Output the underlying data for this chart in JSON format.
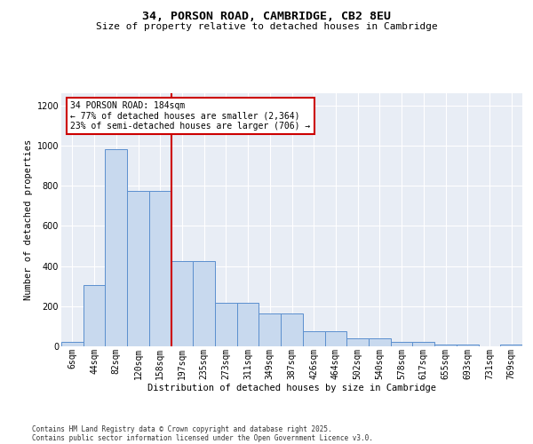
{
  "title1": "34, PORSON ROAD, CAMBRIDGE, CB2 8EU",
  "title2": "Size of property relative to detached houses in Cambridge",
  "xlabel": "Distribution of detached houses by size in Cambridge",
  "ylabel": "Number of detached properties",
  "categories": [
    "6sqm",
    "44sqm",
    "82sqm",
    "120sqm",
    "158sqm",
    "197sqm",
    "235sqm",
    "273sqm",
    "311sqm",
    "349sqm",
    "387sqm",
    "426sqm",
    "464sqm",
    "502sqm",
    "540sqm",
    "578sqm",
    "617sqm",
    "655sqm",
    "693sqm",
    "731sqm",
    "769sqm"
  ],
  "bar_heights": [
    20,
    305,
    980,
    775,
    775,
    425,
    425,
    215,
    215,
    165,
    165,
    75,
    75,
    40,
    40,
    20,
    20,
    10,
    10,
    0,
    10
  ],
  "bar_color": "#c8d9ee",
  "bar_edge_color": "#5b8fce",
  "bg_color": "#e8edf5",
  "annotation_line1": "34 PORSON ROAD: 184sqm",
  "annotation_line2": "← 77% of detached houses are smaller (2,364)",
  "annotation_line3": "23% of semi-detached houses are larger (706) →",
  "vline_x_index": 4.5,
  "vline_color": "#cc0000",
  "annotation_box_facecolor": "#ffffff",
  "annotation_box_edgecolor": "#cc0000",
  "footer1": "Contains HM Land Registry data © Crown copyright and database right 2025.",
  "footer2": "Contains public sector information licensed under the Open Government Licence v3.0.",
  "ylim_max": 1260,
  "yticks": [
    0,
    200,
    400,
    600,
    800,
    1000,
    1200
  ],
  "title1_fontsize": 9.5,
  "title2_fontsize": 8,
  "tick_fontsize": 7,
  "ylabel_fontsize": 7.5,
  "xlabel_fontsize": 7.5,
  "annotation_fontsize": 7,
  "footer_fontsize": 5.5
}
